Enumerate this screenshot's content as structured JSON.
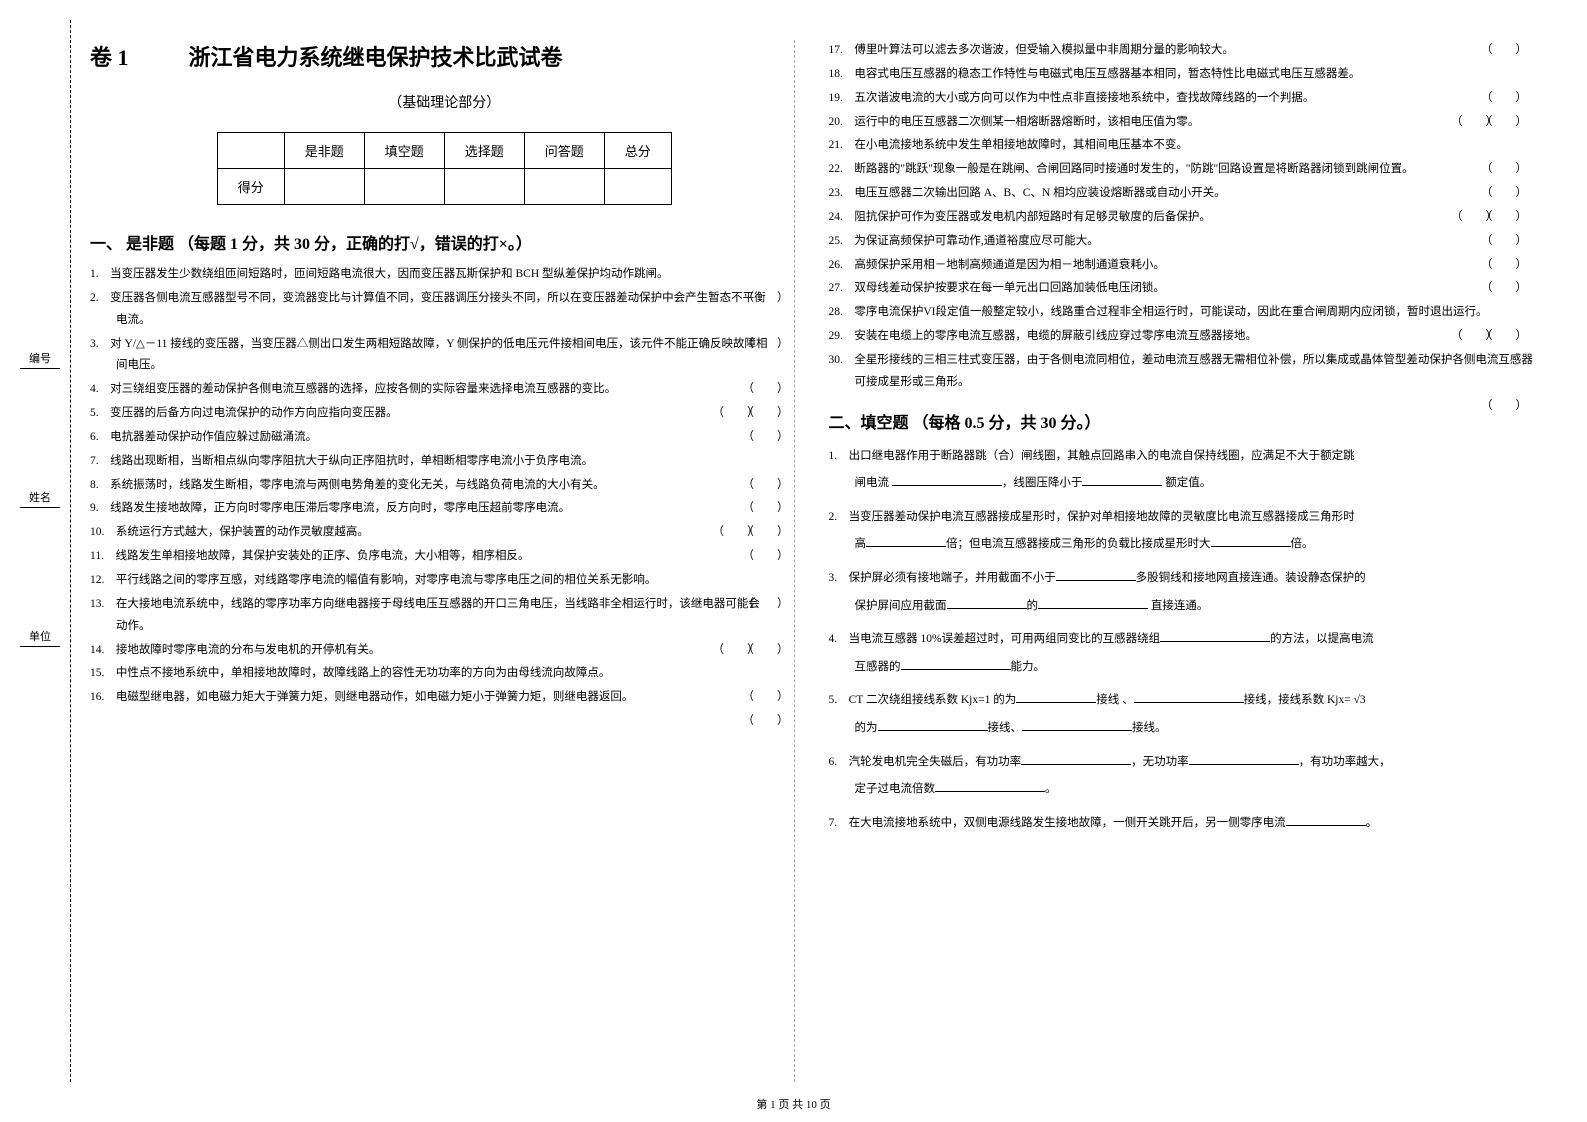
{
  "header": {
    "juan": "卷 1",
    "title": "浙江省电力系统继电保护技术比武试卷",
    "subtitle": "（基础理论部分）"
  },
  "score_table": {
    "cols": [
      "是非题",
      "填空题",
      "选择题",
      "问答题",
      "总分"
    ],
    "row_label": "得分"
  },
  "vlabels": [
    "编号",
    "姓名",
    "单位"
  ],
  "section1": {
    "head": "一、 是非题 （每题 1 分，共 30 分，正确的打√，错误的打×。）",
    "items": [
      {
        "n": "1.",
        "t": "当变压器发生少数绕组匝间短路时，匝间短路电流很大，因而变压器瓦斯保护和 BCH 型纵差保护均动作跳闸。"
      },
      {
        "n": "2.",
        "t": "变压器各侧电流互感器型号不同，变流器变比与计算值不同，变压器调压分接头不同，所以在变压器差动保护中会产生暂态不平衡电流。"
      },
      {
        "n": "3.",
        "t": "对 Y/△－11 接线的变压器，当变压器△侧出口发生两相短路故障，Y 侧保护的低电压元件接相间电压，该元件不能正确反映故障相间电压。"
      },
      {
        "n": "4.",
        "t": "对三绕组变压器的差动保护各侧电流互感器的选择，应按各侧的实际容量来选择电流互感器的变比。"
      },
      {
        "n": "5.",
        "t": "变压器的后备方向过电流保护的动作方向应指向变压器。"
      },
      {
        "n": "6.",
        "t": "电抗器差动保护动作值应躲过励磁涌流。"
      },
      {
        "n": "7.",
        "t": "线路出现断相，当断相点纵向零序阻抗大于纵向正序阻抗时，单相断相零序电流小于负序电流。"
      },
      {
        "n": "8.",
        "t": "系统振荡时，线路发生断相，零序电流与两侧电势角差的变化无关，与线路负荷电流的大小有关。"
      },
      {
        "n": "9.",
        "t": "线路发生接地故障，正方向时零序电压滞后零序电流，反方向时，零序电压超前零序电流。"
      },
      {
        "n": "10.",
        "t": "系统运行方式越大，保护装置的动作灵敏度越高。"
      },
      {
        "n": "11.",
        "t": "线路发生单相接地故障，其保护安装处的正序、负序电流，大小相等，相序相反。"
      },
      {
        "n": "12.",
        "t": "平行线路之间的零序互感，对线路零序电流的幅值有影响，对零序电流与零序电压之间的相位关系无影响。"
      },
      {
        "n": "13.",
        "t": "在大接地电流系统中，线路的零序功率方向继电器接于母线电压互感器的开口三角电压，当线路非全相运行时，该继电器可能会动作。"
      },
      {
        "n": "14.",
        "t": "接地故障时零序电流的分布与发电机的开停机有关。"
      },
      {
        "n": "15.",
        "t": "中性点不接地系统中，单相接地故障时，故障线路上的容性无功功率的方向为由母线流向故障点。"
      },
      {
        "n": "16.",
        "t": "电磁型继电器，如电磁力矩大于弹簧力矩，则继电器动作，如电磁力矩小于弹簧力矩，则继电器返回。"
      }
    ]
  },
  "section1b": {
    "items": [
      {
        "n": "17.",
        "t": "傅里叶算法可以滤去多次谐波，但受输入模拟量中非周期分量的影响较大。"
      },
      {
        "n": "18.",
        "t": "电容式电压互感器的稳态工作特性与电磁式电压互感器基本相同，暂态特性比电磁式电压互感器差。"
      },
      {
        "n": "19.",
        "t": "五次谐波电流的大小或方向可以作为中性点非直接接地系统中，查找故障线路的一个判据。"
      },
      {
        "n": "20.",
        "t": "运行中的电压互感器二次侧某一相熔断器熔断时，该相电压值为零。"
      },
      {
        "n": "21.",
        "t": "在小电流接地系统中发生单相接地故障时，其相间电压基本不变。"
      },
      {
        "n": "22.",
        "t": "断路器的\"跳跃\"现象一般是在跳闸、合闸回路同时接通时发生的，\"防跳\"回路设置是将断路器闭锁到跳闸位置。"
      },
      {
        "n": "23.",
        "t": "电压互感器二次输出回路 A、B、C、N 相均应装设熔断器或自动小开关。"
      },
      {
        "n": "24.",
        "t": "阻抗保护可作为变压器或发电机内部短路时有足够灵敏度的后备保护。"
      },
      {
        "n": "25.",
        "t": "为保证高频保护可靠动作,通道裕度应尽可能大。"
      },
      {
        "n": "26.",
        "t": "高频保护采用相－地制高频通道是因为相－地制通道衰耗小。"
      },
      {
        "n": "27.",
        "t": "双母线差动保护按要求在每一单元出口回路加装低电压闭锁。"
      },
      {
        "n": "28.",
        "t": "零序电流保护VI段定值一般整定较小，线路重合过程非全相运行时，可能误动，因此在重合闸周期内应闭锁，暂时退出运行。"
      },
      {
        "n": "29.",
        "t": "安装在电缆上的零序电流互感器，电缆的屏蔽引线应穿过零序电流互感器接地。"
      },
      {
        "n": "30.",
        "t": "全星形接线的三相三柱式变压器，由于各侧电流同相位，差动电流互感器无需相位补偿，所以集成或晶体管型差动保护各侧电流互感器可接成星形或三角形。"
      }
    ]
  },
  "section2": {
    "head": "二、填空题 （每格 0.5 分，共 30 分。）",
    "q1_a": "1.　出口继电器作用于断路器跳（合）闸线圈，其触点回路串入的电流自保持线圈，应满足不大于额定跳",
    "q1_b": "闸电流",
    "q1_c": "，线圈压降小于",
    "q1_d": "额定值。",
    "q2_a": "2.　当变压器差动保护电流互感器接成星形时，保护对单相接地故障的灵敏度比电流互感器接成三角形时",
    "q2_b": "高",
    "q2_c": "倍；但电流互感器接成三角形的负载比接成星形时大",
    "q2_d": "倍。",
    "q3_a": "3.　保护屏必须有接地端子，并用截面不小于",
    "q3_b": "多股铜线和接地网直接连通。装设静态保护的",
    "q3_c": "保护屏间应用截面",
    "q3_d": "的",
    "q3_e": "直接连通。",
    "q4_a": "4.　当电流互感器 10%误差超过时，可用两组同变比的互感器绕组",
    "q4_b": "的方法，以提高电流",
    "q4_c": "互感器的",
    "q4_d": "能力。",
    "q5_a": "5.　CT 二次绕组接线系数 Kjx=1 的为",
    "q5_b": "接线 、",
    "q5_c": "接线，接线系数 Kjx= √3",
    "q5_d": "的为",
    "q5_e": "接线、",
    "q5_f": "接线。",
    "q6_a": "6.　汽轮发电机完全失磁后，有功功率",
    "q6_b": "，无功功率",
    "q6_c": "，有功功率越大，",
    "q6_d": "定子过电流倍数",
    "q6_e": "。",
    "q7_a": "7.　在大电流接地系统中，双侧电源线路发生接地故障，一侧开关跳开后，另一侧零序电流",
    "q7_b": "。"
  },
  "footer": "第 1 页 共 10 页"
}
